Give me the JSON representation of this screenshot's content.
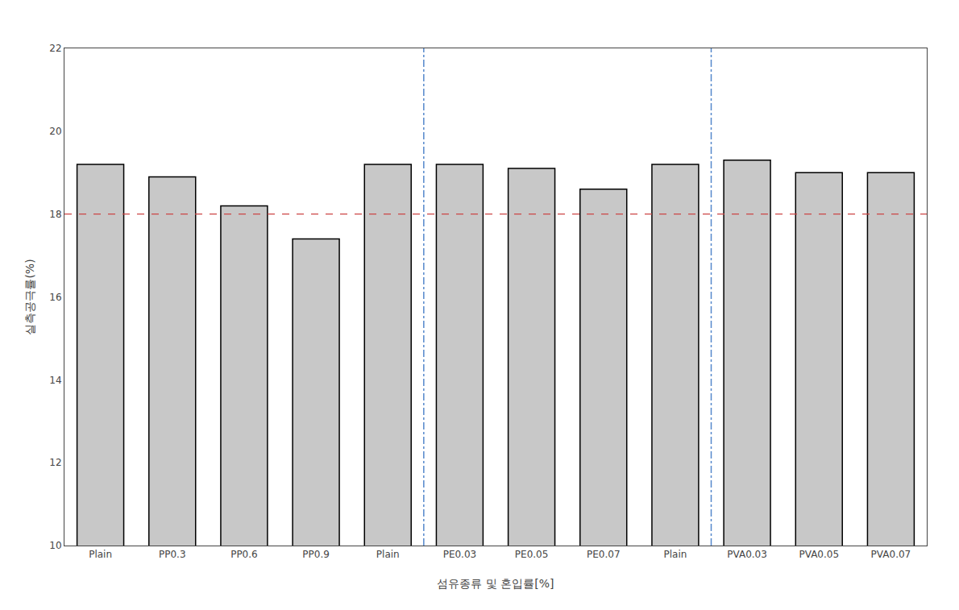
{
  "chart_data": {
    "type": "bar",
    "categories": [
      "Plain",
      "PP0.3",
      "PP0.6",
      "PP0.9",
      "Plain",
      "PE0.03",
      "PE0.05",
      "PE0.07",
      "Plain",
      "PVA0.03",
      "PVA0.05",
      "PVA0.07"
    ],
    "values": [
      19.2,
      18.9,
      18.2,
      17.4,
      19.2,
      19.2,
      19.1,
      18.6,
      19.2,
      19.3,
      19.0,
      19.0
    ],
    "color": "#C8C8C8",
    "xlabel": "섬유종류 및 혼입률[%]",
    "ylabel": "실측공극률(%)",
    "ylim": [
      10,
      22
    ],
    "yticks": [
      10,
      12,
      14,
      16,
      18,
      20,
      22
    ],
    "grid": false,
    "reference_lines": [
      {
        "axis": "y",
        "value": 18.0,
        "color": "#CC4444",
        "line_style": "dashed"
      },
      {
        "axis": "x",
        "value": 4.5,
        "color": "#5588CC",
        "line_style": "dashdot"
      },
      {
        "axis": "x",
        "value": 8.5,
        "color": "#5588CC",
        "line_style": "dashdot"
      }
    ]
  }
}
